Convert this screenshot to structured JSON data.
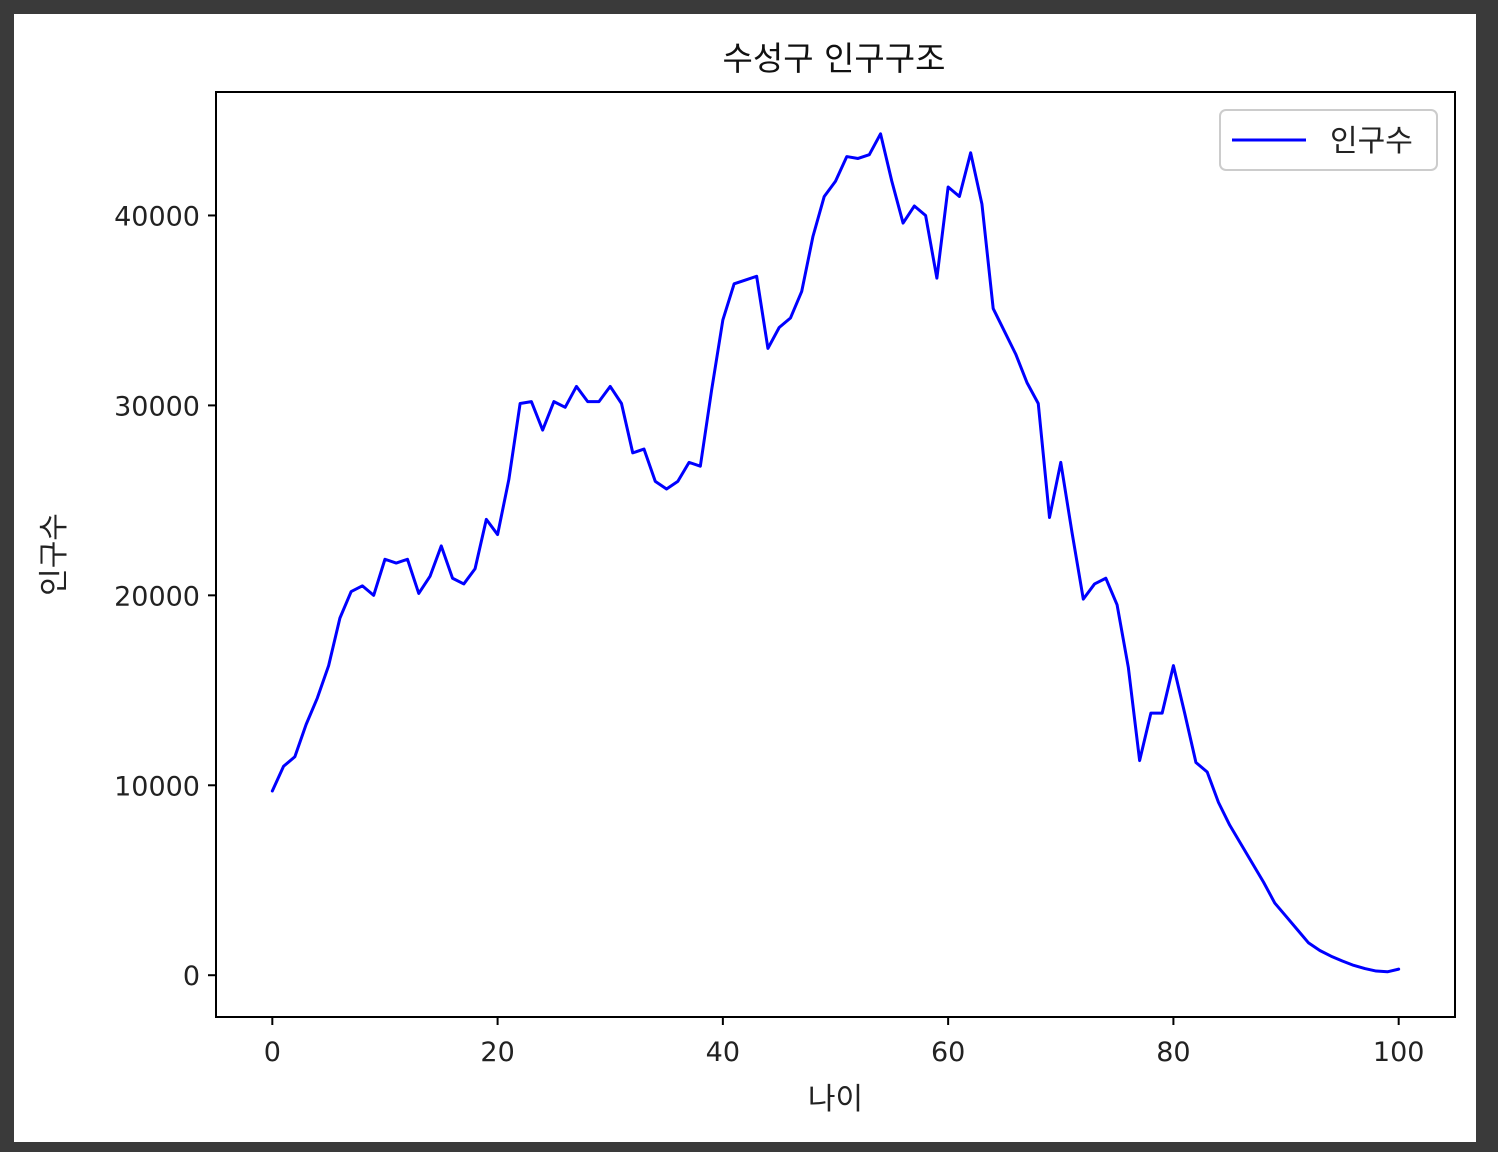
{
  "chart_data": {
    "type": "line",
    "title": "수성구 인구구조",
    "xlabel": "나이",
    "ylabel": "인구수",
    "xlim": [
      -5,
      105
    ],
    "ylim": [
      -2200,
      46500
    ],
    "xticks": [
      0,
      20,
      40,
      60,
      80,
      100
    ],
    "yticks": [
      0,
      10000,
      20000,
      30000,
      40000
    ],
    "grid": false,
    "legend_position": "top-right",
    "series": [
      {
        "name": "인구수",
        "color": "#0000ff",
        "x": [
          0,
          1,
          2,
          3,
          4,
          5,
          6,
          7,
          8,
          9,
          10,
          11,
          12,
          13,
          14,
          15,
          16,
          17,
          18,
          19,
          20,
          21,
          22,
          23,
          24,
          25,
          26,
          27,
          28,
          29,
          30,
          31,
          32,
          33,
          34,
          35,
          36,
          37,
          38,
          39,
          40,
          41,
          42,
          43,
          44,
          45,
          46,
          47,
          48,
          49,
          50,
          51,
          52,
          53,
          54,
          55,
          56,
          57,
          58,
          59,
          60,
          61,
          62,
          63,
          64,
          65,
          66,
          67,
          68,
          69,
          70,
          71,
          72,
          73,
          74,
          75,
          76,
          77,
          78,
          79,
          80,
          81,
          82,
          83,
          84,
          85,
          86,
          87,
          88,
          89,
          90,
          91,
          92,
          93,
          94,
          95,
          96,
          97,
          98,
          99,
          100
        ],
        "y": [
          9700,
          11000,
          11500,
          13200,
          14600,
          16300,
          18800,
          20200,
          20500,
          20000,
          21900,
          21700,
          21900,
          20100,
          21000,
          22600,
          20900,
          20600,
          21400,
          24000,
          23200,
          26100,
          30100,
          30200,
          28700,
          30200,
          29900,
          31000,
          30200,
          30200,
          31000,
          30100,
          27500,
          27700,
          26000,
          25600,
          26000,
          27000,
          26800,
          30800,
          34500,
          36400,
          36600,
          36800,
          33000,
          34100,
          34600,
          36000,
          38900,
          41000,
          41800,
          43100,
          43000,
          43200,
          44300,
          41800,
          39600,
          40500,
          40000,
          36700,
          41500,
          41000,
          43300,
          40600,
          35100,
          33900,
          32700,
          31200,
          30100,
          24100,
          27000,
          23300,
          19800,
          20600,
          20900,
          19500,
          16200,
          11300,
          13800,
          13800,
          16300,
          13800,
          11200,
          10700,
          9100,
          7900,
          6900,
          5900,
          4900,
          3800,
          3100,
          2400,
          1700,
          1300,
          1000,
          750,
          520,
          350,
          220,
          180,
          320
        ]
      }
    ]
  }
}
